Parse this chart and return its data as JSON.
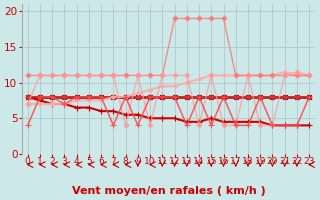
{
  "background_color": "#cce8e8",
  "grid_color": "#b0c8c8",
  "xlabel": "Vent moyen/en rafales ( km/h )",
  "xlim": [
    -0.5,
    23.5
  ],
  "ylim": [
    0,
    21
  ],
  "yticks": [
    0,
    5,
    10,
    15,
    20
  ],
  "xticks": [
    0,
    1,
    2,
    3,
    4,
    5,
    6,
    7,
    8,
    9,
    10,
    11,
    12,
    13,
    14,
    15,
    16,
    17,
    18,
    19,
    20,
    21,
    22,
    23
  ],
  "series": [
    {
      "x": [
        0,
        1,
        2,
        3,
        4,
        5,
        6,
        7,
        8,
        9,
        10,
        11,
        12,
        13,
        14,
        15,
        16,
        17,
        18,
        19,
        20,
        21,
        22,
        23
      ],
      "y": [
        8.0,
        8.0,
        8.0,
        8.0,
        8.0,
        8.0,
        8.0,
        8.0,
        8.0,
        8.0,
        8.0,
        8.0,
        8.0,
        8.0,
        8.0,
        8.0,
        8.0,
        8.0,
        8.0,
        8.0,
        8.0,
        8.0,
        8.0,
        8.0
      ],
      "color": "#880000",
      "linewidth": 1.8,
      "marker": "s",
      "markersize": 2.5,
      "alpha": 1.0
    },
    {
      "x": [
        0,
        1,
        2,
        3,
        4,
        5,
        6,
        7,
        8,
        9,
        10,
        11,
        12,
        13,
        14,
        15,
        16,
        17,
        18,
        19,
        20,
        21,
        22,
        23
      ],
      "y": [
        8.0,
        7.5,
        7.0,
        7.0,
        6.5,
        6.5,
        6.0,
        6.0,
        5.5,
        5.5,
        5.0,
        5.0,
        5.0,
        4.5,
        4.5,
        5.0,
        4.5,
        4.5,
        4.5,
        4.5,
        4.0,
        4.0,
        4.0,
        4.0
      ],
      "color": "#cc0000",
      "linewidth": 1.5,
      "marker": "+",
      "markersize": 4,
      "alpha": 1.0
    },
    {
      "x": [
        0,
        1,
        2,
        3,
        4,
        5,
        6,
        7,
        8,
        9,
        10,
        11,
        12,
        13,
        14,
        15,
        16,
        17,
        18,
        19,
        20,
        21,
        22,
        23
      ],
      "y": [
        8.0,
        8.0,
        8.0,
        8.0,
        8.0,
        8.0,
        8.0,
        8.0,
        8.0,
        8.0,
        8.0,
        8.0,
        8.0,
        8.0,
        8.0,
        8.0,
        8.0,
        8.0,
        8.0,
        8.0,
        8.0,
        8.0,
        8.0,
        8.0
      ],
      "color": "#dd3333",
      "linewidth": 1.2,
      "marker": "D",
      "markersize": 2.5,
      "alpha": 0.9
    },
    {
      "x": [
        0,
        1,
        2,
        3,
        4,
        5,
        6,
        7,
        8,
        9,
        10,
        11,
        12,
        13,
        14,
        15,
        16,
        17,
        18,
        19,
        20,
        21,
        22,
        23
      ],
      "y": [
        7.0,
        7.0,
        7.0,
        7.0,
        7.5,
        7.5,
        7.5,
        8.0,
        8.0,
        8.5,
        9.0,
        9.5,
        9.5,
        10.0,
        10.5,
        11.0,
        11.0,
        11.0,
        11.0,
        11.0,
        11.0,
        11.5,
        11.0,
        11.0
      ],
      "color": "#ffaaaa",
      "linewidth": 1.5,
      "marker": "D",
      "markersize": 2,
      "alpha": 0.9
    },
    {
      "x": [
        0,
        1,
        2,
        3,
        4,
        5,
        6,
        7,
        8,
        9,
        10,
        11,
        12,
        13,
        14,
        15,
        16,
        17,
        18,
        19,
        20,
        21,
        22,
        23
      ],
      "y": [
        11.0,
        11.0,
        11.0,
        11.0,
        11.0,
        11.0,
        11.0,
        11.0,
        11.0,
        11.0,
        11.0,
        11.0,
        19.0,
        19.0,
        19.0,
        19.0,
        19.0,
        11.0,
        11.0,
        11.0,
        11.0,
        11.0,
        11.0,
        11.0
      ],
      "color": "#ff7777",
      "linewidth": 1.0,
      "marker": "D",
      "markersize": 2.5,
      "alpha": 0.8
    },
    {
      "x": [
        0,
        1,
        2,
        3,
        4,
        5,
        6,
        7,
        8,
        9,
        10,
        11,
        12,
        13,
        14,
        15,
        16,
        17,
        18,
        19,
        20,
        21,
        22,
        23
      ],
      "y": [
        7.0,
        11.0,
        11.0,
        11.0,
        11.0,
        11.0,
        11.0,
        11.0,
        4.0,
        11.0,
        4.0,
        11.0,
        11.0,
        11.0,
        4.0,
        11.0,
        4.0,
        4.0,
        11.0,
        4.0,
        4.0,
        11.0,
        11.5,
        11.0
      ],
      "color": "#ff9999",
      "linewidth": 1.0,
      "marker": "D",
      "markersize": 2.5,
      "alpha": 0.75
    },
    {
      "x": [
        0,
        1,
        2,
        3,
        4,
        5,
        6,
        7,
        8,
        9,
        10,
        11,
        12,
        13,
        14,
        15,
        16,
        17,
        18,
        19,
        20,
        21,
        22,
        23
      ],
      "y": [
        4.0,
        8.0,
        8.0,
        7.0,
        8.0,
        8.0,
        8.0,
        4.0,
        8.0,
        4.0,
        8.0,
        8.0,
        8.0,
        4.0,
        8.0,
        4.0,
        8.0,
        4.0,
        4.0,
        8.0,
        4.0,
        4.0,
        4.0,
        8.0
      ],
      "color": "#ff4444",
      "linewidth": 1.1,
      "marker": "+",
      "markersize": 4,
      "alpha": 0.85
    }
  ],
  "arrows": {
    "x": [
      0,
      1,
      2,
      3,
      4,
      5,
      6,
      7,
      8,
      9,
      10,
      11,
      12,
      13,
      14,
      15,
      16,
      17,
      18,
      19,
      20,
      21,
      22,
      23
    ],
    "angles": [
      180,
      180,
      180,
      180,
      180,
      180,
      180,
      180,
      180,
      270,
      180,
      270,
      270,
      270,
      270,
      270,
      270,
      270,
      270,
      270,
      270,
      270,
      270,
      180
    ]
  },
  "xlabel_color": "#cc0000",
  "tick_color": "#cc0000",
  "label_fontsize": 6.5
}
